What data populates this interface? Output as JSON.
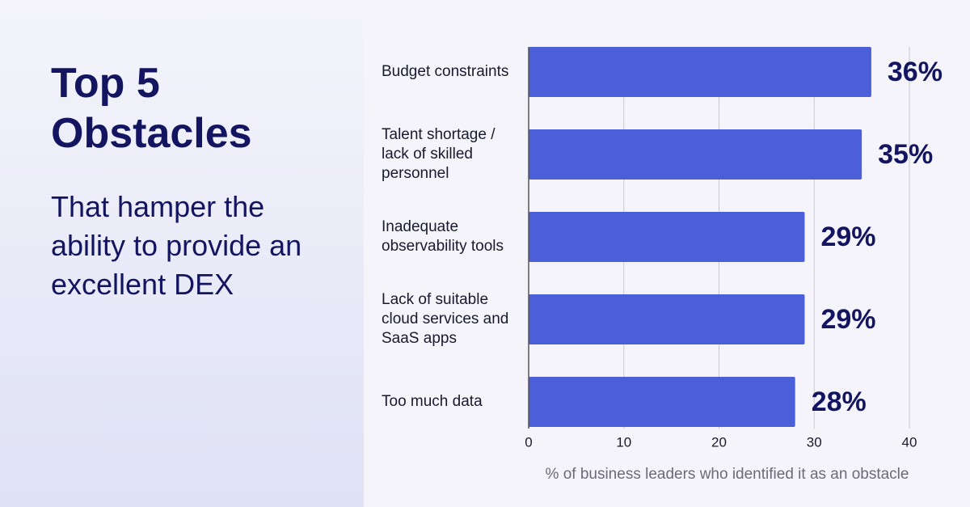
{
  "chart_data": {
    "type": "barh",
    "title": "Top 5 Obstacles",
    "subtitle": "That hamper the ability to provide an excellent DEX",
    "categories": [
      "Budget constraints",
      "Talent shortage / lack of skilled personnel",
      "Inadequate observability tools",
      "Lack of suitable cloud services and SaaS apps",
      "Too much data"
    ],
    "values": [
      36,
      35,
      29,
      29,
      28
    ],
    "value_labels": [
      "36%",
      "35%",
      "29%",
      "29%",
      "28%"
    ],
    "color": "#4b5fd9",
    "xlim": [
      0,
      40
    ],
    "xticks": [
      0,
      10,
      20,
      30,
      40
    ],
    "xlabel": "% of business leaders who identified it as an obstacle",
    "grid": true
  }
}
